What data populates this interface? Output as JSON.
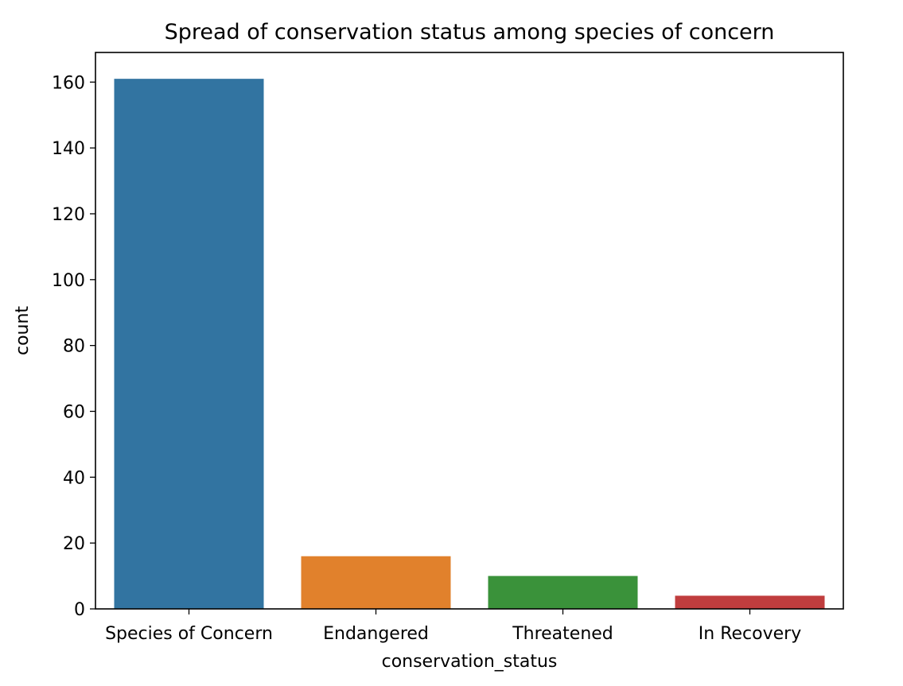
{
  "chart_data": {
    "type": "bar",
    "title": "Spread of conservation status among species of concern",
    "xlabel": "conservation_status",
    "ylabel": "count",
    "categories": [
      "Species of Concern",
      "Endangered",
      "Threatened",
      "In Recovery"
    ],
    "values": [
      161,
      16,
      10,
      4
    ],
    "colors": [
      "#3274a1",
      "#e1812c",
      "#3a923a",
      "#c03d3e"
    ],
    "ylim": [
      0,
      169
    ],
    "yticks": [
      0,
      20,
      40,
      60,
      80,
      100,
      120,
      140,
      160
    ],
    "grid": false
  }
}
